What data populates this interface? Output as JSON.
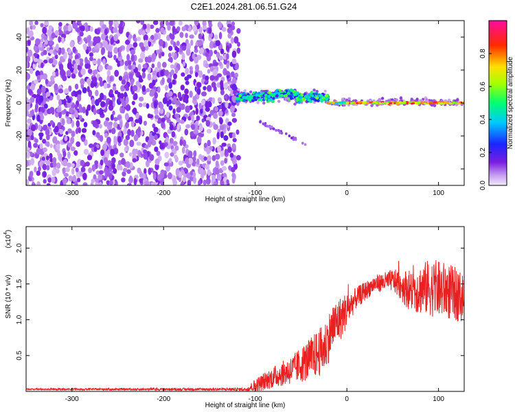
{
  "page_title": "C2E1.2024.281.06.51.G24",
  "colors": {
    "snr_line": "#e82020",
    "axis": "#000000",
    "background": "#ffffff"
  },
  "chart_data": [
    {
      "type": "heatmap",
      "xlabel": "Height of straight line (km)",
      "ylabel": "Frequency (Hz)",
      "xlim": [
        -350,
        128
      ],
      "ylim": [
        -50,
        50
      ],
      "x_ticks": [
        -300,
        -200,
        -100,
        0,
        100
      ],
      "y_ticks": [
        -40,
        -20,
        0,
        20,
        40
      ],
      "colorbar": {
        "label": "Normalized spectral amplitude",
        "range": [
          0,
          1
        ],
        "ticks": [
          "0.0",
          "0.2",
          "0.4",
          "0.6",
          "0.8"
        ],
        "colormap": "rainbow (violet → blue → cyan → green → yellow → red → pink)"
      },
      "features": [
        {
          "description": "diffuse violet noise",
          "x_range": [
            -350,
            -120
          ],
          "freq_range": [
            -50,
            50
          ],
          "amplitude": 0.1
        },
        {
          "description": "cyan/green band",
          "x_range": [
            -120,
            -20
          ],
          "freq_range": [
            -3,
            12
          ],
          "amplitude": 0.45
        },
        {
          "description": "faint descending trace",
          "x_range": [
            -100,
            -35
          ],
          "freq_range": [
            -28,
            -10
          ],
          "amplitude": 0.1
        },
        {
          "description": "narrow red carrier line",
          "x_range": [
            -20,
            128
          ],
          "freq_range": [
            -1,
            1
          ],
          "amplitude": 0.9
        }
      ]
    },
    {
      "type": "line",
      "xlabel": "Height of straight line (km)",
      "ylabel": "SNR (10 * v/v)",
      "y_scale_label": "(x10",
      "y_scale_exp": "4",
      "y_scale_close": ")",
      "xlim": [
        -350,
        128
      ],
      "ylim": [
        0,
        2.3
      ],
      "x_ticks": [
        -300,
        -200,
        -100,
        0,
        100
      ],
      "y_ticks": [
        "0.5",
        "1.0",
        "1.5",
        "2.0"
      ],
      "series": [
        {
          "envelope_x": [
            -350,
            -110,
            -100,
            -80,
            -60,
            -40,
            -25,
            -15,
            -5,
            10,
            30,
            50,
            70,
            90,
            110,
            128
          ],
          "envelope_mean": [
            0.03,
            0.03,
            0.08,
            0.2,
            0.3,
            0.45,
            0.6,
            0.9,
            1.05,
            1.3,
            1.5,
            1.55,
            1.4,
            1.45,
            1.4,
            1.3
          ],
          "envelope_spread": [
            0.01,
            0.02,
            0.1,
            0.15,
            0.2,
            0.3,
            0.35,
            0.35,
            0.3,
            0.15,
            0.12,
            0.15,
            0.3,
            0.4,
            0.4,
            0.35
          ]
        }
      ]
    }
  ]
}
